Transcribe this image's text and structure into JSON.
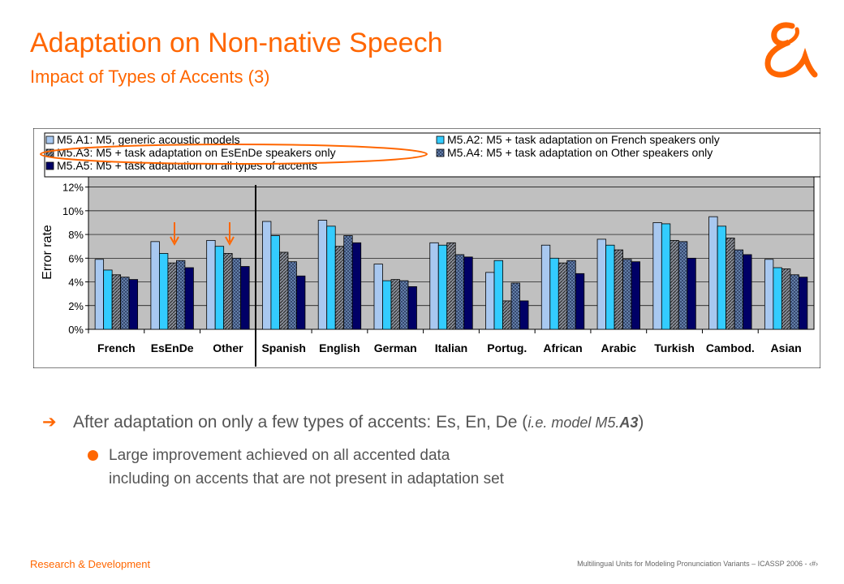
{
  "slide": {
    "title": "Adaptation on Non-native Speech",
    "subtitle": "Impact of Types of Accents (3)",
    "bullet_main": "After adaptation on only a few types of accents: Es, En, De (",
    "bullet_main_em": "i.e. model M5.",
    "bullet_main_em_bold": "A3",
    "bullet_main_close": ")",
    "sub_line1": "Large improvement achieved on all accented data",
    "sub_line2": "including on accents that are not present in adaptation set",
    "footer_left": "Research & Development",
    "footer_right": "Multilingual Units for Modeling Pronunciation Variants – ICASSP 2006 - ‹#›",
    "accent_color": "#ff6600"
  },
  "chart_data": {
    "type": "bar",
    "ylabel": "Error rate",
    "xlabel": "",
    "ylim": [
      0,
      13
    ],
    "yticks": [
      "0%",
      "2%",
      "4%",
      "6%",
      "8%",
      "10%",
      "12%"
    ],
    "grid": true,
    "legend_position": "top",
    "categories": [
      "French",
      "EsEnDe",
      "Other",
      "Spanish",
      "English",
      "German",
      "Italian",
      "Portug.",
      "African",
      "Arabic",
      "Turkish",
      "Cambod.",
      "Asian"
    ],
    "series": [
      {
        "name": "M5.A1: M5, generic acoustic models",
        "values": [
          5.9,
          7.4,
          7.5,
          9.1,
          9.2,
          5.5,
          7.3,
          4.8,
          7.1,
          7.6,
          9.0,
          9.5,
          5.9
        ]
      },
      {
        "name": "M5.A2: M5 + task adaptation on French speakers only",
        "values": [
          5.0,
          6.4,
          7.0,
          7.9,
          8.7,
          4.1,
          7.1,
          5.8,
          6.0,
          7.1,
          8.9,
          8.7,
          5.2
        ]
      },
      {
        "name": "M5.A3: M5 + task adaptation on EsEnDe speakers only",
        "values": [
          4.6,
          5.6,
          6.4,
          6.5,
          7.0,
          4.2,
          7.3,
          2.4,
          5.6,
          6.7,
          7.5,
          7.7,
          5.1
        ]
      },
      {
        "name": "M5.A4: M5 + task adaptation on Other speakers only",
        "values": [
          4.4,
          5.8,
          6.0,
          5.7,
          7.9,
          4.1,
          6.3,
          3.9,
          5.8,
          5.9,
          7.4,
          6.7,
          4.6
        ]
      },
      {
        "name": "M5.A5: M5 + task adaptation on all types of accents",
        "values": [
          4.2,
          5.2,
          5.3,
          4.5,
          7.3,
          3.6,
          6.1,
          2.4,
          4.7,
          5.7,
          6.0,
          6.3,
          4.4
        ]
      }
    ],
    "colors": [
      "#a8c8f0",
      "#33ccff",
      "#8a8f9a",
      "#5a7aa8",
      "#000066"
    ]
  }
}
